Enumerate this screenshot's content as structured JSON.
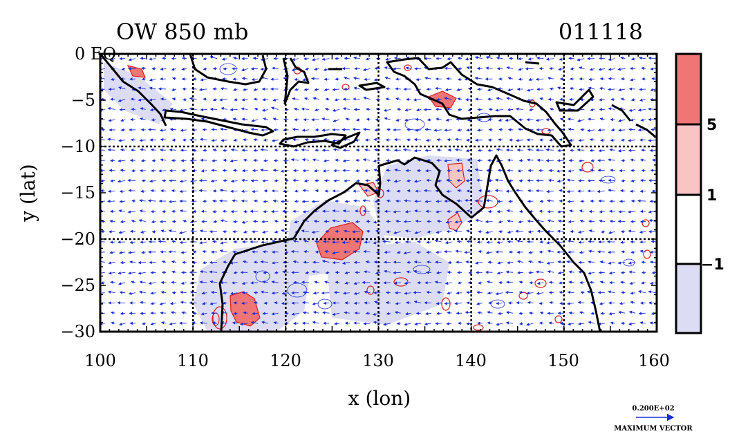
{
  "title_left": "OW 850 mb",
  "title_right": "011118",
  "xlabel": "x (lon)",
  "ylabel": "y (lat)",
  "x_ticks": [
    "100",
    "110",
    "120",
    "130",
    "140",
    "150",
    "160"
  ],
  "y_ticks": [
    "0 EQ",
    "−5",
    "−10",
    "−15",
    "−20",
    "−25",
    "−30"
  ],
  "colorbar": {
    "labels": [
      "5",
      "1",
      "−1"
    ],
    "colors": [
      "#f07575",
      "#f9c4c4",
      "#ffffff",
      "#dcdcf5"
    ]
  },
  "vector_legend": {
    "value": "0.200E+02",
    "caption": "MAXIMUM VECTOR"
  },
  "colors": {
    "vector": "#1a2ed6",
    "contour_pos": "#d42020",
    "fill_pos": "#f07575",
    "fill_neg": "#dcdcf5"
  },
  "map": {
    "lon_range": [
      100,
      160
    ],
    "lat_range": [
      -30,
      0
    ],
    "grid_lon": [
      110,
      120,
      130,
      140,
      150
    ],
    "grid_lat": [
      -10,
      -20
    ]
  }
}
